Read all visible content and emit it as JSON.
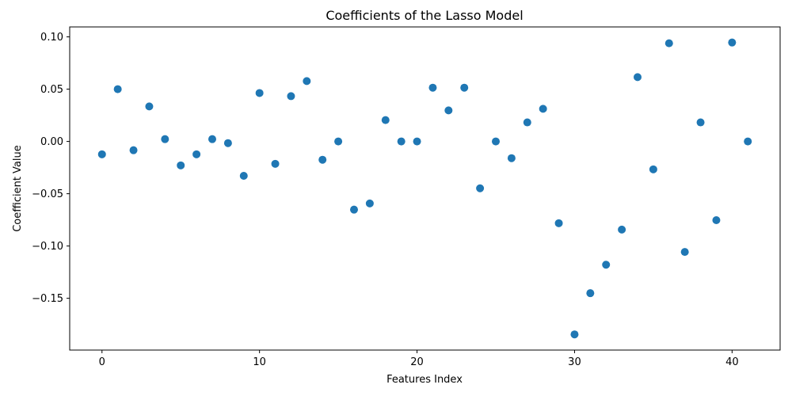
{
  "chart_data": {
    "type": "scatter",
    "title": "Coefficients of the Lasso Model",
    "xlabel": "Features Index",
    "ylabel": "Coefficient Value",
    "xlim": [
      -2.05,
      43.05
    ],
    "ylim": [
      -0.1995,
      0.1095
    ],
    "xticks": [
      0,
      10,
      20,
      30,
      40
    ],
    "xtick_labels": [
      "0",
      "10",
      "20",
      "30",
      "40"
    ],
    "yticks": [
      -0.15,
      -0.1,
      -0.05,
      0.0,
      0.05,
      0.1
    ],
    "ytick_labels": [
      "−0.15",
      "−0.10",
      "−0.05",
      "0.00",
      "0.05",
      "0.10"
    ],
    "grid": false,
    "marker_color": "#1f77b4",
    "x": [
      0,
      1,
      2,
      3,
      4,
      5,
      6,
      7,
      8,
      9,
      10,
      11,
      12,
      13,
      14,
      15,
      16,
      17,
      18,
      19,
      20,
      21,
      22,
      23,
      24,
      25,
      26,
      27,
      28,
      29,
      30,
      31,
      32,
      33,
      34,
      35,
      36,
      37,
      38,
      39,
      40,
      41
    ],
    "y": [
      -0.0123,
      0.05,
      -0.0084,
      0.0335,
      0.0022,
      -0.0229,
      -0.0123,
      0.0022,
      -0.0016,
      -0.0329,
      0.0463,
      -0.0214,
      0.0433,
      0.0577,
      -0.0175,
      0.0,
      -0.0652,
      -0.0593,
      0.0204,
      0.0,
      0.0,
      0.0514,
      0.0297,
      0.0514,
      -0.0448,
      0.0,
      -0.016,
      0.0182,
      0.0312,
      -0.0782,
      -0.1845,
      -0.1451,
      -0.1179,
      -0.0843,
      0.0615,
      -0.0267,
      0.0939,
      -0.1057,
      0.0182,
      -0.0753,
      0.0946,
      0.0
    ]
  }
}
